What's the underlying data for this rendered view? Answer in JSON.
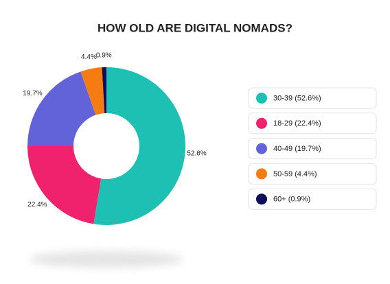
{
  "chart_data": {
    "type": "pie",
    "title": "HOW OLD ARE DIGITAL NOMADS?",
    "categories": [
      "30-39 (52.6%)",
      "18-29 (22.4%)",
      "40-49 (19.7%)",
      "50-59 (4.4%)",
      "60+ (0.9%)"
    ],
    "values": [
      52.6,
      22.4,
      19.7,
      4.4,
      0.9
    ],
    "value_labels": [
      "52.6%",
      "22.4%",
      "19.7%",
      "4.4%",
      "0.9%"
    ],
    "colors": [
      "#1ec0b4",
      "#f0226e",
      "#6262d9",
      "#f57c12",
      "#0e0e5e"
    ],
    "donut": true,
    "legend": "right"
  }
}
